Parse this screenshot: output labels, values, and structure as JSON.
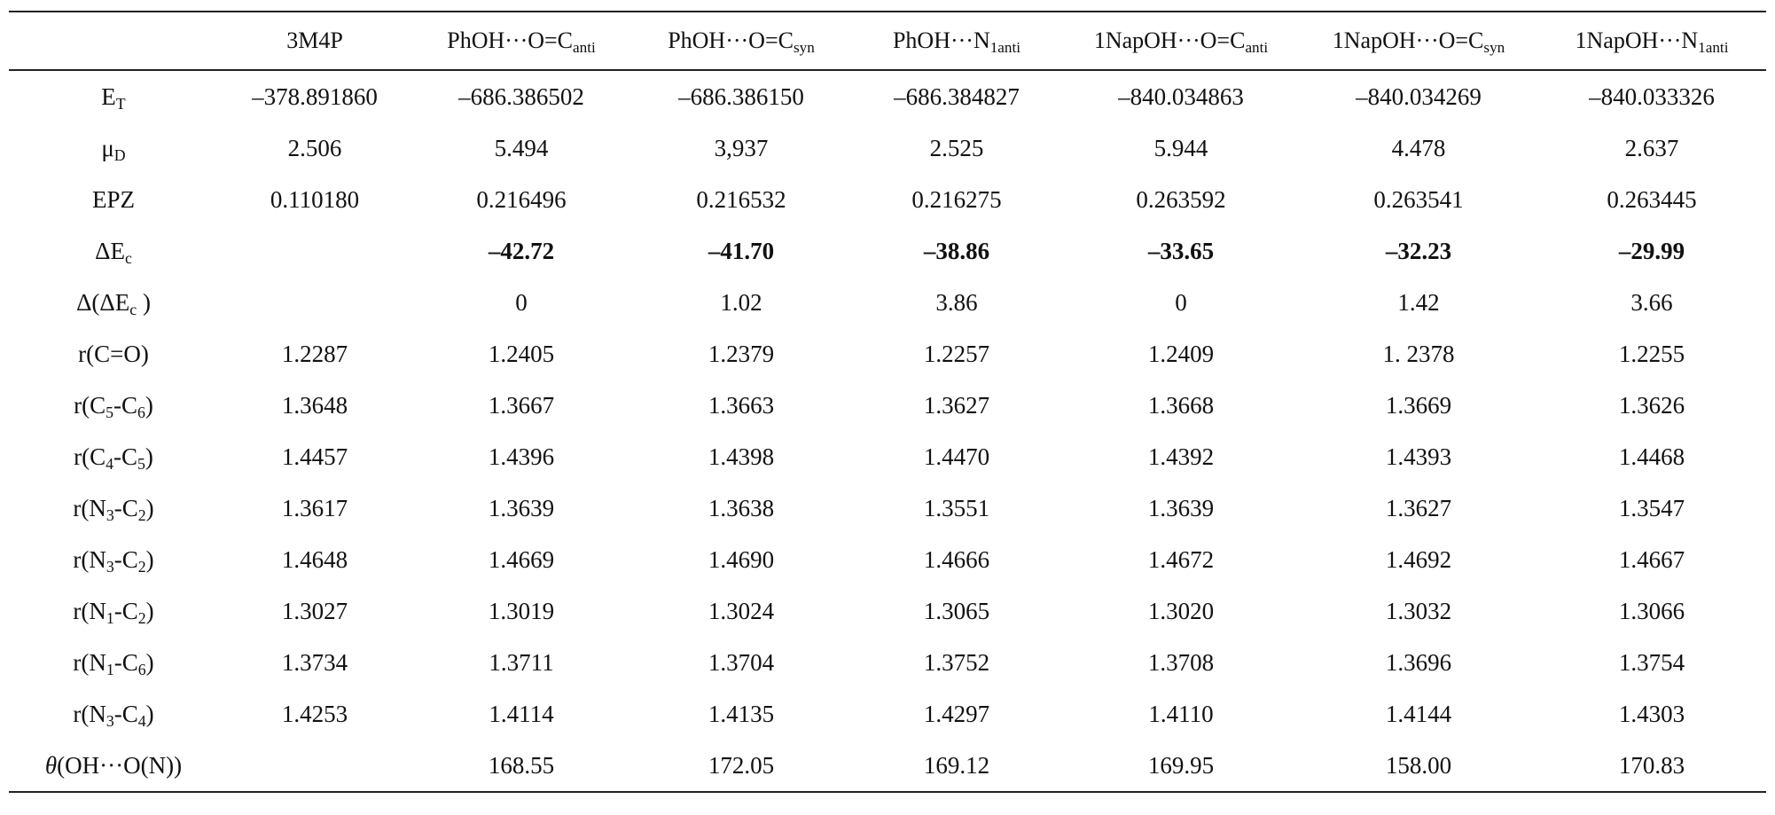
{
  "table": {
    "header": {
      "empty": "",
      "col1": "3M4P",
      "col2_main": "PhOH···O=C",
      "col2_sub": "anti",
      "col3_main": "PhOH···O=C",
      "col3_sub": "syn",
      "col4_main": "PhOH···N",
      "col4_sub": "1anti",
      "col5_main": "1NapOH···O=C",
      "col5_sub": "anti",
      "col6_main": "1NapOH···O=C",
      "col6_sub": "syn",
      "col7_main": "1NapOH···N",
      "col7_sub": "1anti"
    },
    "rows": [
      {
        "label": {
          "pre": "E",
          "sub": "T",
          "post": ""
        },
        "values": [
          "–378.891860",
          "–686.386502",
          "–686.386150",
          "–686.384827",
          "–840.034863",
          "–840.034269",
          "–840.033326"
        ]
      },
      {
        "label": {
          "pre": "μ",
          "sub": "D",
          "post": ""
        },
        "values": [
          "2.506",
          "5.494",
          "3,937",
          "2.525",
          "5.944",
          "4.478",
          "2.637"
        ]
      },
      {
        "label": {
          "pre": "EPZ",
          "sub": "",
          "post": ""
        },
        "values": [
          "0.110180",
          "0.216496",
          "0.216532",
          "0.216275",
          "0.263592",
          "0.263541",
          "0.263445"
        ]
      },
      {
        "label": {
          "pre": "ΔE",
          "sub": "c",
          "post": ""
        },
        "values": [
          "",
          "–42.72",
          "–41.70",
          "–38.86",
          "–33.65",
          "–32.23",
          "–29.99"
        ]
      },
      {
        "label": {
          "pre": "Δ(ΔE",
          "sub": "c",
          "post": " )"
        },
        "values": [
          "",
          "0",
          "1.02",
          "3.86",
          "0",
          "1.42",
          "3.66"
        ]
      },
      {
        "label": {
          "pre": "r(C=O)",
          "sub": "",
          "post": ""
        },
        "values": [
          "1.2287",
          "1.2405",
          "1.2379",
          "1.2257",
          "1.2409",
          "1. 2378",
          "1.2255"
        ]
      },
      {
        "label": {
          "pre": "r(C",
          "sub": "5",
          "mid": "-C",
          "sub2": "6",
          "post": ")"
        },
        "values": [
          "1.3648",
          "1.3667",
          "1.3663",
          "1.3627",
          "1.3668",
          "1.3669",
          "1.3626"
        ]
      },
      {
        "label": {
          "pre": "r(C",
          "sub": "4",
          "mid": "-C",
          "sub2": "5",
          "post": ")"
        },
        "values": [
          "1.4457",
          "1.4396",
          "1.4398",
          "1.4470",
          "1.4392",
          "1.4393",
          "1.4468"
        ]
      },
      {
        "label": {
          "pre": "r(N",
          "sub": "3",
          "mid": "-C",
          "sub2": "2",
          "post": ")"
        },
        "values": [
          "1.3617",
          "1.3639",
          "1.3638",
          "1.3551",
          "1.3639",
          "1.3627",
          "1.3547"
        ]
      },
      {
        "label": {
          "pre": "r(N",
          "sub": "3",
          "mid": "-C",
          "sub2": "2",
          "post": ")"
        },
        "values": [
          "1.4648",
          "1.4669",
          "1.4690",
          "1.4666",
          "1.4672",
          "1.4692",
          "1.4667"
        ]
      },
      {
        "label": {
          "pre": "r(N",
          "sub": "1",
          "mid": "-C",
          "sub2": "2",
          "post": ")"
        },
        "values": [
          "1.3027",
          "1.3019",
          "1.3024",
          "1.3065",
          "1.3020",
          "1.3032",
          "1.3066"
        ]
      },
      {
        "label": {
          "pre": "r(N",
          "sub": "1",
          "mid": "-C",
          "sub2": "6",
          "post": ")"
        },
        "values": [
          "1.3734",
          "1.3711",
          "1.3704",
          "1.3752",
          "1.3708",
          "1.3696",
          "1.3754"
        ]
      },
      {
        "label": {
          "pre": "r(N",
          "sub": "3",
          "mid": "-C",
          "sub2": "4",
          "post": ")"
        },
        "values": [
          "1.4253",
          "1.4114",
          "1.4135",
          "1.4297",
          "1.4110",
          "1.4144",
          "1.4303"
        ]
      },
      {
        "label": {
          "italic": "θ",
          "pre": "(OH···O(N))",
          "sub": "",
          "post": ""
        },
        "values": [
          "",
          "168.55",
          "172.05",
          "169.12",
          "169.95",
          "158.00",
          "170.83"
        ]
      }
    ]
  }
}
